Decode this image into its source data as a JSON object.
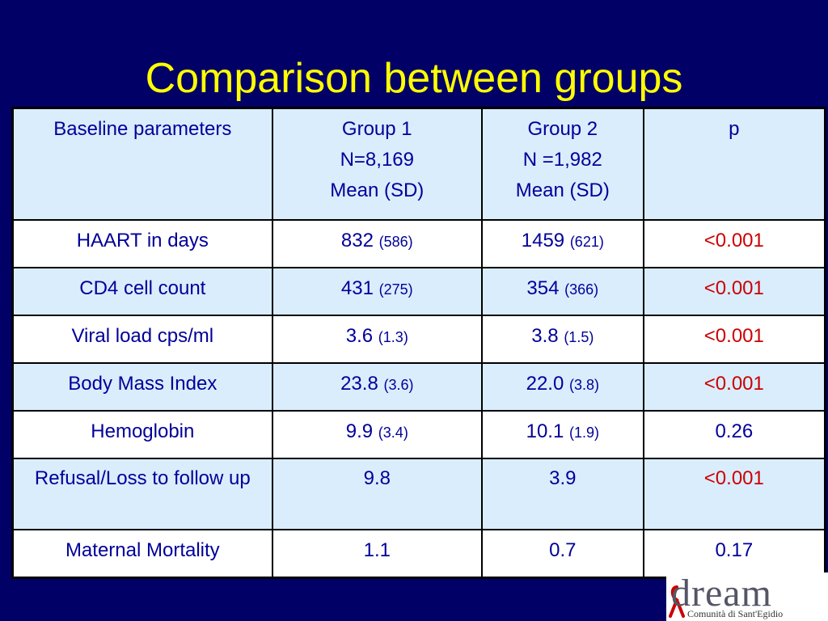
{
  "title": "Comparison between groups",
  "table": {
    "header": {
      "col1": "Baseline parameters",
      "col2": [
        "Group 1",
        "N=8,169",
        "Mean (SD)"
      ],
      "col3": [
        "Group 2",
        "N =1,982",
        "Mean (SD)"
      ],
      "col4": "p"
    },
    "rows": [
      {
        "param": "HAART in days",
        "g1": "832",
        "g1_sd": "(586)",
        "g2": "1459",
        "g2_sd": "(621)",
        "p": "<0.001"
      },
      {
        "param": "CD4 cell count",
        "g1": "431",
        "g1_sd": "(275)",
        "g2": "354",
        "g2_sd": "(366)",
        "p": "<0.001"
      },
      {
        "param": "Viral load cps/ml",
        "g1": "3.6",
        "g1_sd": "(1.3)",
        "g2": "3.8",
        "g2_sd": "(1.5)",
        "p": "<0.001"
      },
      {
        "param": "Body Mass Index",
        "g1": "23.8",
        "g1_sd": "(3.6)",
        "g2": "22.0",
        "g2_sd": "(3.8)",
        "p": "<0.001"
      },
      {
        "param": "Hemoglobin",
        "g1": "9.9",
        "g1_sd": "(3.4)",
        "g2": "10.1",
        "g2_sd": "(1.9)",
        "p": "0.26"
      },
      {
        "param": "Refusal/Loss to follow up",
        "g1": "9.8",
        "g1_sd": "",
        "g2": "3.9",
        "g2_sd": "",
        "p": "<0.001"
      },
      {
        "param": "Maternal Mortality",
        "g1": "1.1",
        "g1_sd": "",
        "g2": "0.7",
        "g2_sd": "",
        "p": "0.17"
      }
    ]
  },
  "logo": {
    "wordmark": "dream",
    "subtitle": "Comunità di Sant'Egidio"
  },
  "colors": {
    "background": "#000066",
    "title": "#ffff00",
    "text": "#000099",
    "significant": "#cc0000",
    "alt_row": "#d9edfd"
  }
}
